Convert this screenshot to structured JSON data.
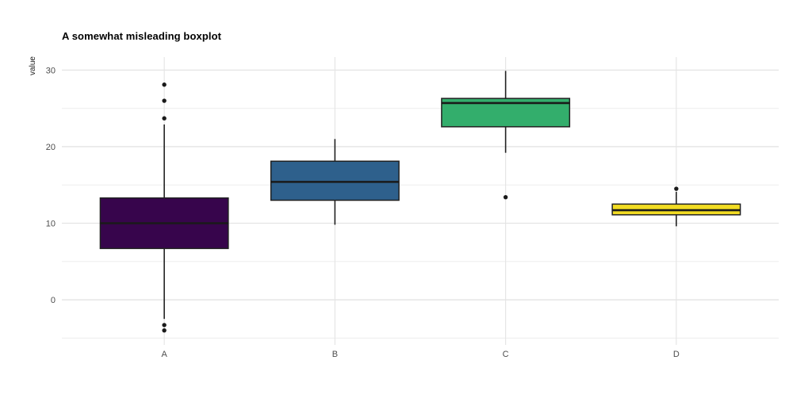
{
  "chart_data": {
    "type": "boxplot",
    "title": "A somewhat misleading boxplot",
    "xlabel": "",
    "ylabel": "value",
    "categories": [
      "A",
      "B",
      "C",
      "D"
    ],
    "series": [
      {
        "name": "A",
        "color": "#37054C",
        "whisker_low": -2.5,
        "q1": 6.7,
        "median": 10.0,
        "q3": 13.3,
        "whisker_high": 22.9,
        "outliers": [
          28.1,
          26.0,
          23.7,
          -3.3,
          -4.0
        ]
      },
      {
        "name": "B",
        "color": "#2E608C",
        "whisker_low": 9.8,
        "q1": 13.0,
        "median": 15.4,
        "q3": 18.1,
        "whisker_high": 21.0,
        "outliers": []
      },
      {
        "name": "C",
        "color": "#33AE6C",
        "whisker_low": 19.2,
        "q1": 22.6,
        "median": 25.7,
        "q3": 26.3,
        "whisker_high": 29.9,
        "outliers": [
          13.4
        ]
      },
      {
        "name": "D",
        "color": "#F2DC23",
        "whisker_low": 9.6,
        "q1": 11.1,
        "median": 11.7,
        "q3": 12.5,
        "whisker_high": 14.1,
        "outliers": [
          14.5
        ]
      }
    ],
    "yticks": [
      0,
      10,
      20,
      30
    ],
    "yminorticks": [
      -5,
      5,
      15,
      25
    ],
    "ylim": [
      -5.9,
      31.7
    ],
    "grid": true,
    "legend": false,
    "colors": {
      "background": "#ffffff",
      "grid_major": "#e4e4e4",
      "grid_minor": "#ebebeb",
      "box_stroke": "#212121",
      "median_stroke": "#1a1a1a",
      "outlier_fill": "#1a1a1a",
      "tick_text": "#4d4d4d",
      "title_text": "#000000"
    }
  }
}
